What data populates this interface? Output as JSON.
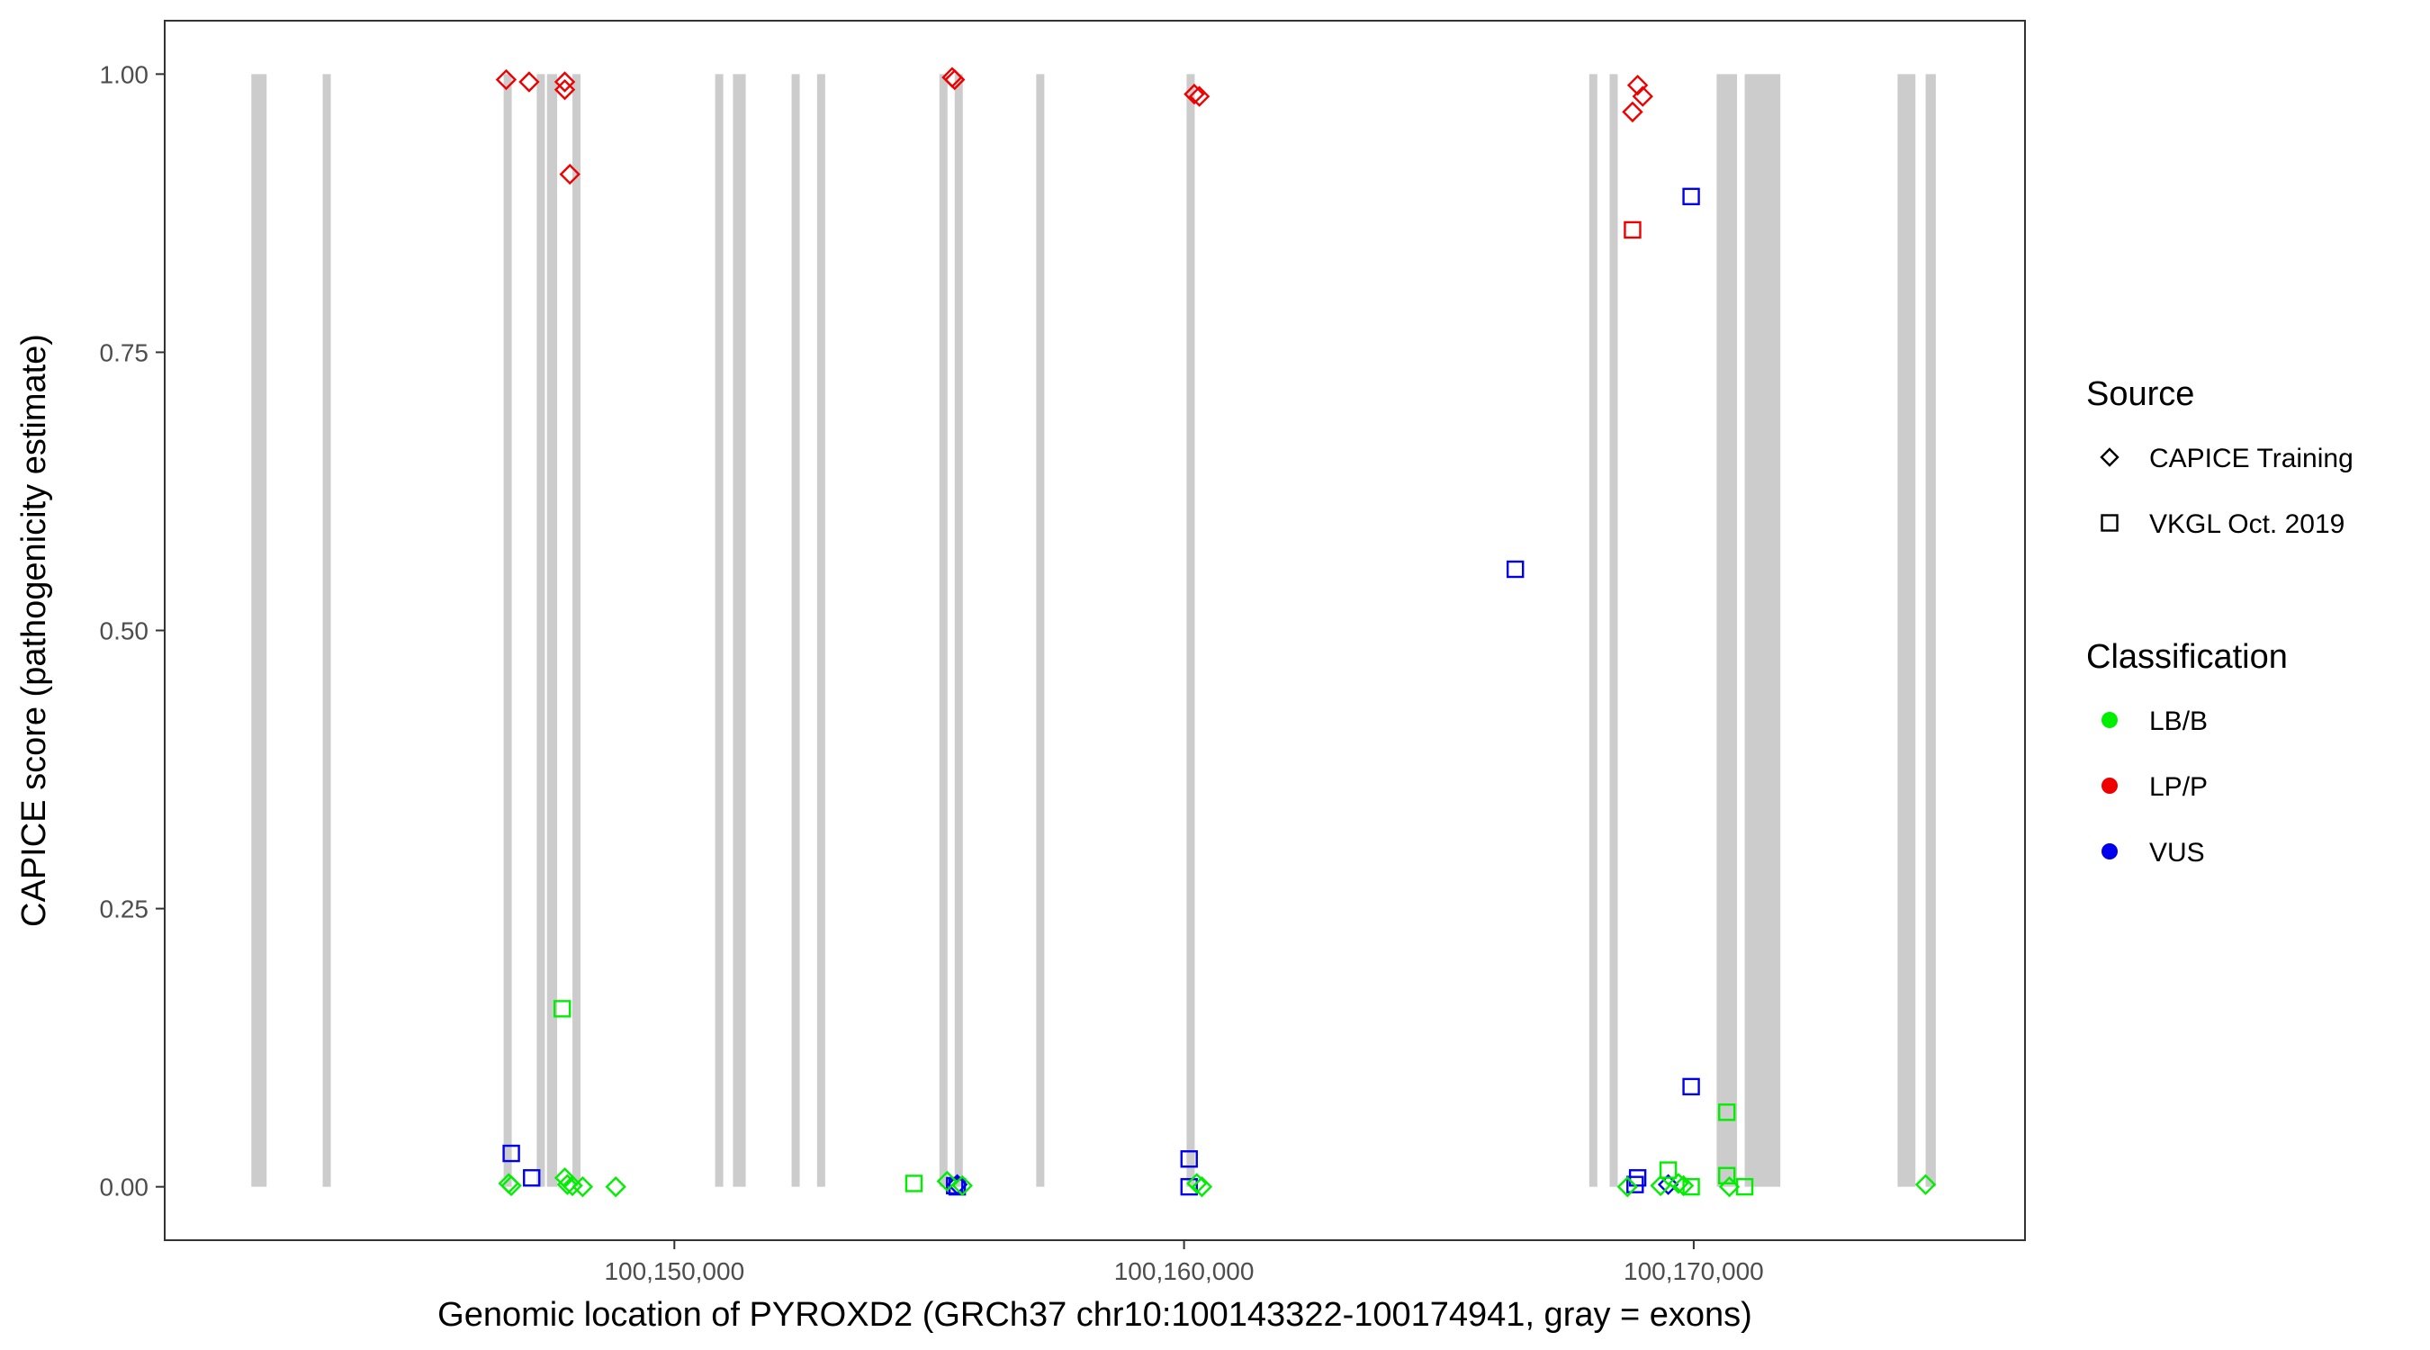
{
  "chart_data": {
    "type": "scatter",
    "title": "",
    "xlabel": "Genomic location of PYROXD2 (GRCh37 chr10:100143322-100174941, gray = exons)",
    "ylabel": "CAPICE score (pathogenicity estimate)",
    "xlim": [
      100140000,
      100176500
    ],
    "ylim": [
      -0.048,
      1.048
    ],
    "x_ticks": [
      100150000,
      100160000,
      100170000
    ],
    "x_tick_labels": [
      "100,150,000",
      "100,160,000",
      "100,170,000"
    ],
    "y_ticks": [
      0,
      0.25,
      0.5,
      0.75,
      1
    ],
    "y_tick_labels": [
      "0.00",
      "0.25",
      "0.50",
      "0.75",
      "1.00"
    ],
    "grid": false,
    "exon_color": "#cccccc",
    "exons": [
      [
        100141700,
        100142000
      ],
      [
        100143100,
        100143250
      ],
      [
        100146650,
        100146800
      ],
      [
        100147300,
        100147400
      ],
      [
        100147500,
        100147700
      ],
      [
        100148000,
        100148150
      ],
      [
        100150800,
        100150950
      ],
      [
        100151150,
        100151400
      ],
      [
        100152300,
        100152450
      ],
      [
        100152800,
        100152950
      ],
      [
        100155200,
        100155300
      ],
      [
        100155500,
        100155600
      ],
      [
        100157100,
        100157250
      ],
      [
        100160050,
        100160200
      ],
      [
        100167950,
        100168050
      ],
      [
        100168350,
        100168500
      ],
      [
        100170450,
        100170850
      ],
      [
        100171000,
        100171700
      ],
      [
        100174000,
        100174350
      ],
      [
        100174550,
        100174750
      ]
    ],
    "legend": {
      "position": "right",
      "source_title": "Source",
      "source_items": [
        {
          "label": "CAPICE Training",
          "shape": "diamond"
        },
        {
          "label": "VKGL Oct. 2019",
          "shape": "square"
        }
      ],
      "classification_title": "Classification",
      "classification_items": [
        {
          "label": "LB/B",
          "color": "#00ee00"
        },
        {
          "label": "LP/P",
          "color": "#ee0000"
        },
        {
          "label": "VUS",
          "color": "#0000ee"
        }
      ]
    },
    "series": [
      {
        "source": "CAPICE Training",
        "classification": "LP/P",
        "shape": "diamond",
        "color": "#ee0000",
        "points": [
          [
            100146700,
            0.995
          ],
          [
            100147150,
            0.993
          ],
          [
            100147850,
            0.993
          ],
          [
            100147850,
            0.986
          ],
          [
            100147950,
            0.91
          ],
          [
            100155450,
            0.997
          ],
          [
            100155500,
            0.995
          ],
          [
            100160200,
            0.982
          ],
          [
            100160300,
            0.98
          ],
          [
            100168800,
            0.966
          ],
          [
            100168900,
            0.99
          ],
          [
            100169000,
            0.98
          ]
        ]
      },
      {
        "source": "VKGL Oct. 2019",
        "classification": "LP/P",
        "shape": "square",
        "color": "#ee0000",
        "points": [
          [
            100168800,
            0.86
          ]
        ]
      },
      {
        "source": "VKGL Oct. 2019",
        "classification": "VUS",
        "shape": "square",
        "color": "#0000ee",
        "points": [
          [
            100146800,
            0.03
          ],
          [
            100147200,
            0.008
          ],
          [
            100155500,
            0.001
          ],
          [
            100155550,
            0.0
          ],
          [
            100160100,
            0.025
          ],
          [
            100160100,
            0.0
          ],
          [
            100166500,
            0.555
          ],
          [
            100168850,
            0.002
          ],
          [
            100168900,
            0.008
          ],
          [
            100169950,
            0.89
          ],
          [
            100169950,
            0.09
          ]
        ]
      },
      {
        "source": "CAPICE Training",
        "classification": "VUS",
        "shape": "diamond",
        "color": "#0000ee",
        "points": [
          [
            100155550,
            0.002
          ],
          [
            100169500,
            0.002
          ]
        ]
      },
      {
        "source": "VKGL Oct. 2019",
        "classification": "LB/B",
        "shape": "square",
        "color": "#00ee00",
        "points": [
          [
            100147800,
            0.16
          ],
          [
            100154700,
            0.003
          ],
          [
            100169500,
            0.015
          ],
          [
            100169950,
            0.0
          ],
          [
            100170650,
            0.067
          ],
          [
            100170650,
            0.01
          ],
          [
            100171000,
            0.0
          ]
        ]
      },
      {
        "source": "CAPICE Training",
        "classification": "LB/B",
        "shape": "diamond",
        "color": "#00ee00",
        "points": [
          [
            100146750,
            0.003
          ],
          [
            100146800,
            0.001
          ],
          [
            100147850,
            0.008
          ],
          [
            100147900,
            0.002
          ],
          [
            100148000,
            0.001
          ],
          [
            100148200,
            0.0
          ],
          [
            100148850,
            0.0
          ],
          [
            100155350,
            0.005
          ],
          [
            100155650,
            0.001
          ],
          [
            100160250,
            0.003
          ],
          [
            100160350,
            0.0
          ],
          [
            100168700,
            0.0
          ],
          [
            100169350,
            0.001
          ],
          [
            100169700,
            0.003
          ],
          [
            100169800,
            0.001
          ],
          [
            100170700,
            0.0
          ],
          [
            100174550,
            0.002
          ]
        ]
      }
    ]
  }
}
